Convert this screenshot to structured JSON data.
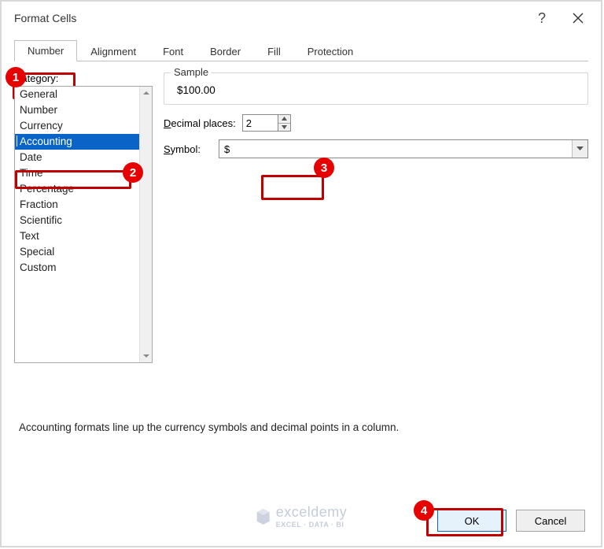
{
  "dialog": {
    "title": "Format Cells"
  },
  "tabs": {
    "items": [
      "Number",
      "Alignment",
      "Font",
      "Border",
      "Fill",
      "Protection"
    ],
    "active_index": 0
  },
  "category": {
    "label_prefix": "C",
    "label_rest": "ategory:",
    "items": [
      "General",
      "Number",
      "Currency",
      "Accounting",
      "Date",
      "Time",
      "Percentage",
      "Fraction",
      "Scientific",
      "Text",
      "Special",
      "Custom"
    ],
    "selected_index": 3
  },
  "sample": {
    "legend": "Sample",
    "value": "$100.00"
  },
  "decimal": {
    "label_prefix": "D",
    "label_rest": "ecimal places:",
    "value": "2"
  },
  "symbol": {
    "label_prefix": "S",
    "label_rest": "ymbol:",
    "value": "$"
  },
  "description": "Accounting formats line up the currency symbols and decimal points in a column.",
  "buttons": {
    "ok": "OK",
    "cancel": "Cancel"
  },
  "callouts": {
    "c1": "1",
    "c2": "2",
    "c3": "3",
    "c4": "4"
  },
  "watermark": {
    "brand": "exceldemy",
    "tagline": "EXCEL · DATA · BI"
  },
  "styling": {
    "accent_red": "#c00000",
    "callout_red": "#e60000",
    "selection_blue": "#0a64c8",
    "border_gray": "#a7a7a7",
    "btn_bg": "#efefef",
    "ok_btn_bg": "#e5f1fb",
    "dialog_border": "#d8d8d8"
  }
}
